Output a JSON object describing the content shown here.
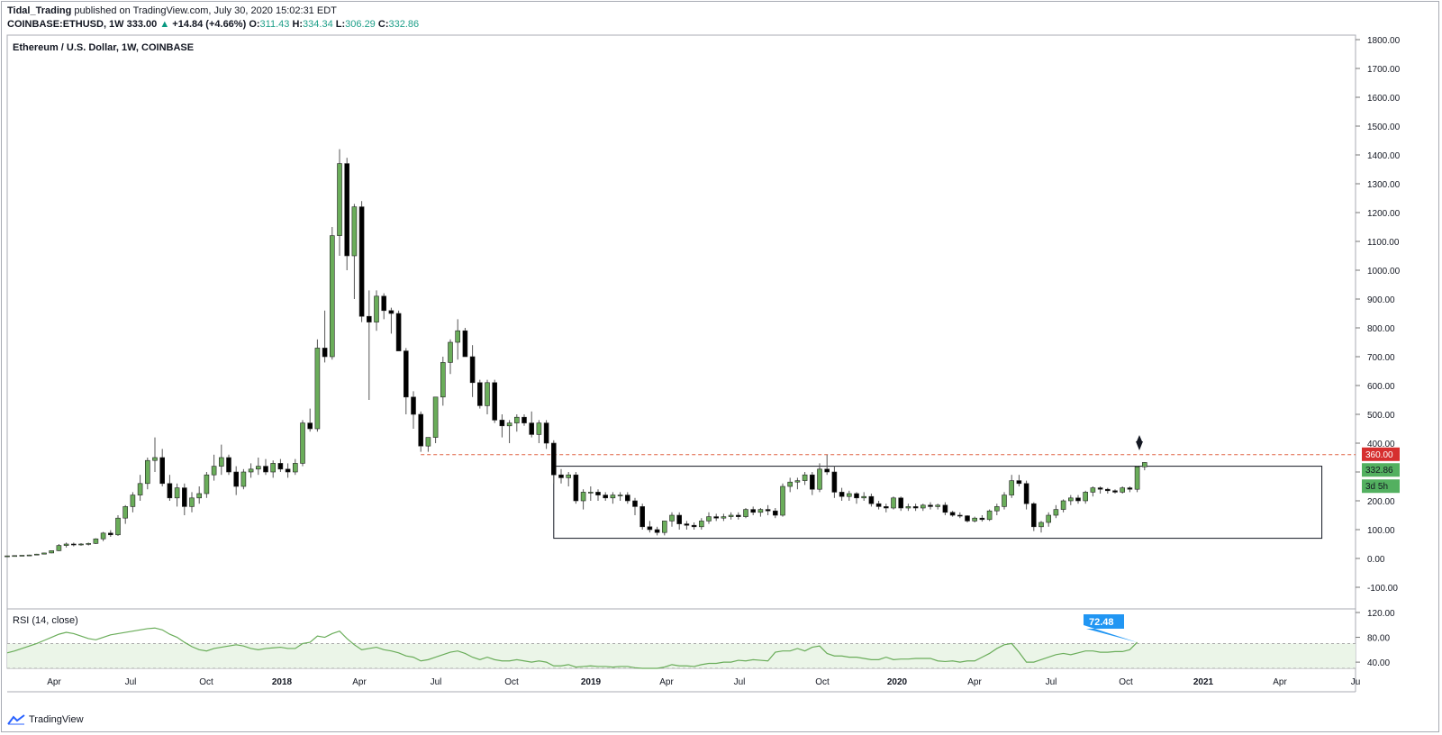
{
  "header": {
    "author": "Tidal_Trading",
    "published_text": "published on TradingView.com, July 30, 2020 15:02:31 EDT",
    "symbol": "COINBASE:ETHUSD, 1W",
    "last": "333.00",
    "change": "+14.84 (+4.66%)",
    "o_label": "O:",
    "o": "311.43",
    "h_label": "H:",
    "h": "334.34",
    "l_label": "L:",
    "l": "306.29",
    "c_label": "C:",
    "c": "332.86"
  },
  "footer": {
    "logo_text": "TradingView"
  },
  "colors": {
    "up": "#6aad5a",
    "down": "#000000",
    "rsi": "#6aad5a",
    "level": "#e06040",
    "badge_red": "#d62f2f",
    "badge_green": "#53b060",
    "rsi_badge": "#2196f3"
  },
  "chart_data": {
    "type": "candlestick",
    "title": "Ethereum / U.S. Dollar, 1W, COINBASE",
    "timeframe": "1W",
    "ylim": [
      -150,
      1820
    ],
    "y_ticks": [
      "1800.00",
      "1700.00",
      "1600.00",
      "1500.00",
      "1400.00",
      "1300.00",
      "1200.00",
      "1100.00",
      "1000.00",
      "900.00",
      "800.00",
      "700.00",
      "600.00",
      "500.00",
      "400.00",
      "300.00",
      "200.00",
      "100.00",
      "0.00",
      "-100.00"
    ],
    "x_tick_labels": [
      "Apr",
      "Jul",
      "Oct",
      "2018",
      "Apr",
      "Jul",
      "Oct",
      "2019",
      "Apr",
      "Jul",
      "Oct",
      "2020",
      "Apr",
      "Jul",
      "Oct",
      "2021",
      "Apr",
      "Ju"
    ],
    "series": [
      {
        "name": "ETHUSD",
        "candles": [
          [
            8,
            9,
            8,
            9
          ],
          [
            9,
            10,
            9,
            10
          ],
          [
            10,
            11,
            10,
            11
          ],
          [
            11,
            13,
            11,
            12
          ],
          [
            12,
            16,
            12,
            15
          ],
          [
            15,
            20,
            14,
            19
          ],
          [
            19,
            28,
            18,
            27
          ],
          [
            27,
            50,
            25,
            45
          ],
          [
            45,
            55,
            38,
            50
          ],
          [
            50,
            55,
            42,
            48
          ],
          [
            48,
            53,
            44,
            50
          ],
          [
            50,
            55,
            45,
            52
          ],
          [
            52,
            70,
            50,
            68
          ],
          [
            68,
            92,
            60,
            88
          ],
          [
            88,
            98,
            75,
            82
          ],
          [
            82,
            150,
            78,
            140
          ],
          [
            140,
            185,
            120,
            180
          ],
          [
            180,
            230,
            160,
            220
          ],
          [
            220,
            290,
            200,
            260
          ],
          [
            260,
            350,
            240,
            340
          ],
          [
            340,
            420,
            300,
            350
          ],
          [
            350,
            380,
            250,
            260
          ],
          [
            260,
            290,
            200,
            210
          ],
          [
            210,
            260,
            180,
            245
          ],
          [
            245,
            260,
            150,
            180
          ],
          [
            180,
            230,
            160,
            210
          ],
          [
            210,
            250,
            190,
            225
          ],
          [
            225,
            300,
            210,
            290
          ],
          [
            290,
            360,
            270,
            320
          ],
          [
            320,
            395,
            290,
            350
          ],
          [
            350,
            360,
            290,
            300
          ],
          [
            300,
            320,
            220,
            250
          ],
          [
            250,
            310,
            240,
            300
          ],
          [
            300,
            330,
            280,
            310
          ],
          [
            310,
            350,
            290,
            320
          ],
          [
            320,
            345,
            290,
            300
          ],
          [
            300,
            340,
            280,
            330
          ],
          [
            330,
            345,
            300,
            310
          ],
          [
            310,
            330,
            280,
            300
          ],
          [
            300,
            345,
            290,
            330
          ],
          [
            330,
            480,
            320,
            470
          ],
          [
            470,
            520,
            440,
            450
          ],
          [
            450,
            760,
            440,
            730
          ],
          [
            730,
            860,
            680,
            700
          ],
          [
            700,
            1150,
            690,
            1120
          ],
          [
            1120,
            1420,
            1050,
            1370
          ],
          [
            1370,
            1390,
            1000,
            1050
          ],
          [
            1050,
            1230,
            900,
            1220
          ],
          [
            1220,
            1240,
            820,
            840
          ],
          [
            840,
            930,
            550,
            820
          ],
          [
            820,
            930,
            790,
            910
          ],
          [
            910,
            920,
            830,
            860
          ],
          [
            860,
            870,
            780,
            850
          ],
          [
            850,
            860,
            720,
            720
          ],
          [
            720,
            730,
            500,
            560
          ],
          [
            560,
            580,
            450,
            500
          ],
          [
            500,
            510,
            370,
            390
          ],
          [
            390,
            420,
            370,
            420
          ],
          [
            420,
            560,
            400,
            560
          ],
          [
            560,
            700,
            530,
            680
          ],
          [
            680,
            760,
            640,
            750
          ],
          [
            750,
            830,
            690,
            790
          ],
          [
            790,
            800,
            700,
            700
          ],
          [
            700,
            740,
            560,
            610
          ],
          [
            610,
            620,
            520,
            530
          ],
          [
            530,
            620,
            500,
            610
          ],
          [
            610,
            620,
            470,
            480
          ],
          [
            480,
            500,
            420,
            460
          ],
          [
            460,
            480,
            400,
            470
          ],
          [
            470,
            500,
            440,
            490
          ],
          [
            490,
            500,
            460,
            470
          ],
          [
            470,
            510,
            420,
            430
          ],
          [
            430,
            480,
            400,
            470
          ],
          [
            470,
            480,
            380,
            400
          ],
          [
            400,
            410,
            260,
            290
          ],
          [
            290,
            310,
            260,
            280
          ],
          [
            280,
            300,
            250,
            290
          ],
          [
            290,
            300,
            190,
            200
          ],
          [
            200,
            240,
            170,
            230
          ],
          [
            230,
            250,
            200,
            230
          ],
          [
            230,
            240,
            200,
            220
          ],
          [
            220,
            230,
            200,
            210
          ],
          [
            210,
            230,
            190,
            220
          ],
          [
            220,
            230,
            200,
            220
          ],
          [
            220,
            230,
            190,
            200
          ],
          [
            200,
            210,
            150,
            180
          ],
          [
            180,
            190,
            100,
            110
          ],
          [
            110,
            130,
            90,
            100
          ],
          [
            100,
            110,
            80,
            90
          ],
          [
            90,
            130,
            80,
            130
          ],
          [
            130,
            160,
            110,
            150
          ],
          [
            150,
            160,
            100,
            120
          ],
          [
            120,
            130,
            100,
            115
          ],
          [
            115,
            125,
            100,
            110
          ],
          [
            110,
            140,
            100,
            130
          ],
          [
            130,
            160,
            120,
            145
          ],
          [
            145,
            155,
            130,
            140
          ],
          [
            140,
            155,
            130,
            145
          ],
          [
            145,
            160,
            135,
            150
          ],
          [
            150,
            160,
            135,
            145
          ],
          [
            145,
            175,
            140,
            170
          ],
          [
            170,
            180,
            150,
            160
          ],
          [
            160,
            175,
            145,
            170
          ],
          [
            170,
            185,
            150,
            165
          ],
          [
            165,
            175,
            140,
            150
          ],
          [
            150,
            260,
            145,
            250
          ],
          [
            250,
            280,
            230,
            265
          ],
          [
            265,
            280,
            240,
            270
          ],
          [
            270,
            300,
            255,
            290
          ],
          [
            290,
            300,
            220,
            240
          ],
          [
            240,
            330,
            230,
            310
          ],
          [
            310,
            360,
            290,
            300
          ],
          [
            300,
            320,
            210,
            230
          ],
          [
            230,
            245,
            200,
            215
          ],
          [
            215,
            235,
            200,
            225
          ],
          [
            225,
            230,
            190,
            210
          ],
          [
            210,
            230,
            200,
            215
          ],
          [
            215,
            225,
            180,
            190
          ],
          [
            190,
            200,
            170,
            180
          ],
          [
            180,
            190,
            160,
            175
          ],
          [
            175,
            215,
            170,
            210
          ],
          [
            210,
            215,
            165,
            175
          ],
          [
            175,
            190,
            165,
            180
          ],
          [
            180,
            190,
            165,
            175
          ],
          [
            175,
            190,
            165,
            185
          ],
          [
            185,
            195,
            170,
            180
          ],
          [
            180,
            190,
            170,
            185
          ],
          [
            185,
            195,
            150,
            160
          ],
          [
            160,
            165,
            145,
            150
          ],
          [
            150,
            160,
            140,
            148
          ],
          [
            148,
            150,
            125,
            130
          ],
          [
            130,
            145,
            125,
            140
          ],
          [
            140,
            150,
            128,
            135
          ],
          [
            135,
            170,
            130,
            165
          ],
          [
            165,
            190,
            150,
            180
          ],
          [
            180,
            230,
            170,
            220
          ],
          [
            220,
            290,
            210,
            270
          ],
          [
            270,
            290,
            250,
            260
          ],
          [
            260,
            270,
            170,
            190
          ],
          [
            190,
            195,
            95,
            110
          ],
          [
            110,
            130,
            90,
            125
          ],
          [
            125,
            160,
            110,
            150
          ],
          [
            150,
            185,
            140,
            170
          ],
          [
            170,
            205,
            160,
            200
          ],
          [
            200,
            220,
            185,
            210
          ],
          [
            210,
            220,
            190,
            200
          ],
          [
            200,
            235,
            190,
            230
          ],
          [
            230,
            250,
            215,
            245
          ],
          [
            245,
            250,
            225,
            240
          ],
          [
            240,
            245,
            225,
            235
          ],
          [
            235,
            240,
            225,
            230
          ],
          [
            230,
            250,
            225,
            245
          ],
          [
            245,
            250,
            230,
            240
          ],
          [
            240,
            320,
            230,
            318
          ],
          [
            318,
            334,
            306,
            333
          ]
        ]
      }
    ],
    "horizontal_line": {
      "value": 360,
      "label": "360.00"
    },
    "last_price_label": "332.86",
    "countdown_label": "3d 5h",
    "range_box": {
      "x_from_candle": 74,
      "x_to_candle": 178,
      "y_low": 70,
      "y_high": 320
    },
    "rsi": {
      "label": "RSI (14, close)",
      "ylim": [
        30,
        120
      ],
      "y_ticks": [
        "120.00",
        "80.00",
        "40.00"
      ],
      "band": [
        30,
        70
      ],
      "last_value": "72.48",
      "values": [
        55,
        58,
        62,
        66,
        70,
        75,
        80,
        85,
        88,
        86,
        82,
        78,
        76,
        80,
        84,
        86,
        88,
        90,
        92,
        94,
        95,
        92,
        85,
        80,
        72,
        65,
        60,
        58,
        62,
        64,
        66,
        68,
        66,
        62,
        60,
        62,
        63,
        64,
        62,
        62,
        70,
        72,
        82,
        80,
        86,
        90,
        78,
        68,
        60,
        62,
        64,
        60,
        58,
        55,
        50,
        48,
        42,
        44,
        48,
        52,
        56,
        58,
        54,
        48,
        44,
        48,
        44,
        42,
        42,
        44,
        42,
        40,
        42,
        40,
        34,
        34,
        36,
        32,
        33,
        34,
        33,
        33,
        32,
        33,
        33,
        31,
        30,
        30,
        30,
        32,
        36,
        34,
        34,
        33,
        36,
        38,
        38,
        40,
        40,
        43,
        42,
        44,
        43,
        42,
        56,
        58,
        58,
        62,
        58,
        64,
        66,
        54,
        50,
        50,
        48,
        48,
        46,
        44,
        44,
        48,
        44,
        45,
        45,
        46,
        46,
        46,
        42,
        41,
        42,
        40,
        42,
        42,
        48,
        54,
        62,
        68,
        70,
        56,
        40,
        40,
        44,
        48,
        52,
        54,
        52,
        55,
        58,
        58,
        56,
        56,
        57,
        57,
        60,
        72
      ]
    }
  }
}
